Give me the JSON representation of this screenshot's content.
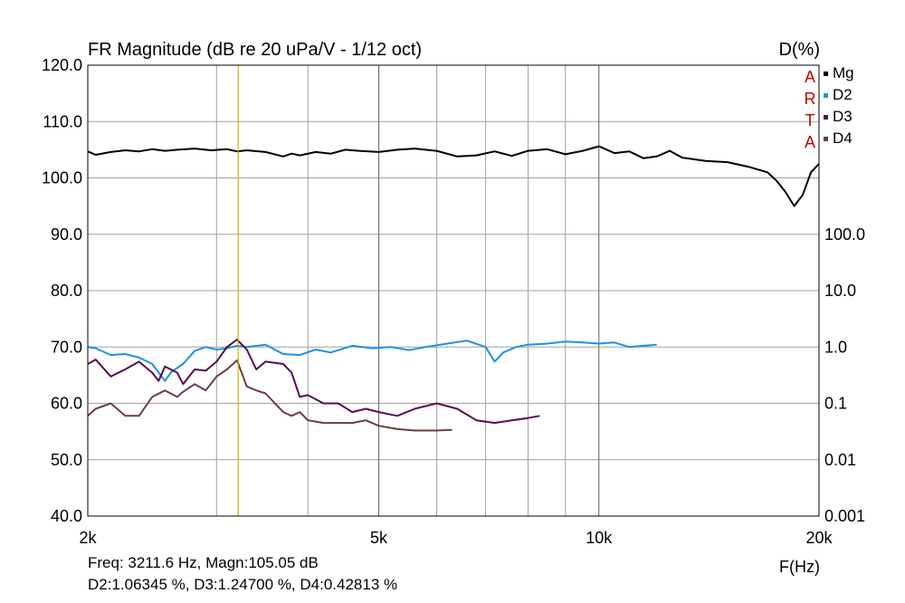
{
  "title": "FR Magnitude (dB re 20 uPa/V - 1/12 oct)",
  "right_axis_title": "D(%)",
  "x_axis_title": "F(Hz)",
  "watermark": [
    "A",
    "R",
    "T",
    "A"
  ],
  "readout": {
    "line1": "Freq: 3211.6 Hz, Magn:105.05 dB",
    "line2": "D2:1.06345 %, D3:1.24700 %, D4:0.42813 %"
  },
  "colors": {
    "mg": "#000000",
    "d2": "#1e90e6",
    "d3": "#5a0a50",
    "d4": "#6e3c3c",
    "grid": "#a0a0a0",
    "cursor": "#c8b400",
    "watermark": "#c00000"
  },
  "chart_data": {
    "type": "line",
    "x_scale": "log",
    "xlim": [
      2000,
      20000
    ],
    "x_ticks": [
      {
        "value": 2000,
        "label": "2k"
      },
      {
        "value": 5000,
        "label": "5k"
      },
      {
        "value": 10000,
        "label": "10k"
      },
      {
        "value": 20000,
        "label": "20k"
      }
    ],
    "x_minor_grid": [
      3000,
      4000,
      6000,
      7000,
      8000,
      9000
    ],
    "y_left": {
      "ylim": [
        40,
        120
      ],
      "ticks": [
        {
          "value": 40,
          "label": "40.0"
        },
        {
          "value": 50,
          "label": "50.0"
        },
        {
          "value": 60,
          "label": "60.0"
        },
        {
          "value": 70,
          "label": "70.0"
        },
        {
          "value": 80,
          "label": "80.0"
        },
        {
          "value": 90,
          "label": "90.0"
        },
        {
          "value": 100,
          "label": "100.0"
        },
        {
          "value": 110,
          "label": "110.0"
        },
        {
          "value": 120,
          "label": "120.0"
        }
      ]
    },
    "y_right": {
      "scale": "log",
      "ticks": [
        {
          "value": 0.001,
          "label": "0.001"
        },
        {
          "value": 0.01,
          "label": "0.01"
        },
        {
          "value": 0.1,
          "label": "0.1"
        },
        {
          "value": 1.0,
          "label": "1.0"
        },
        {
          "value": 10.0,
          "label": "10.0"
        },
        {
          "value": 100.0,
          "label": "100.0"
        }
      ]
    },
    "cursor_x": 3211.6,
    "grid": true,
    "legend_position": "top-right",
    "series": [
      {
        "name": "Mg",
        "axis": "left",
        "color_key": "mg",
        "x": [
          2000,
          2050,
          2150,
          2250,
          2350,
          2450,
          2550,
          2650,
          2800,
          2950,
          3100,
          3200,
          3300,
          3500,
          3700,
          3800,
          3900,
          4100,
          4300,
          4500,
          4700,
          5000,
          5300,
          5600,
          6000,
          6400,
          6800,
          7200,
          7600,
          8000,
          8500,
          9000,
          9500,
          10000,
          10500,
          11000,
          11500,
          12000,
          12500,
          13000,
          14000,
          15000,
          16000,
          17000,
          17500,
          18000,
          18500,
          19000,
          19500,
          20000
        ],
        "y": [
          104.7,
          104.1,
          104.6,
          104.9,
          104.7,
          105.1,
          104.8,
          105.0,
          105.2,
          104.9,
          105.1,
          104.7,
          104.9,
          104.6,
          103.8,
          104.3,
          104.0,
          104.6,
          104.3,
          105.0,
          104.8,
          104.6,
          105.0,
          105.2,
          104.8,
          103.8,
          104.0,
          104.7,
          103.9,
          104.8,
          105.1,
          104.2,
          104.8,
          105.6,
          104.4,
          104.7,
          103.5,
          103.8,
          104.8,
          103.6,
          103.0,
          102.8,
          102.0,
          101.0,
          99.5,
          97.5,
          95.0,
          97.0,
          101.0,
          102.5
        ]
      },
      {
        "name": "D2",
        "axis": "right",
        "color_key": "d2",
        "x": [
          2000,
          2050,
          2150,
          2250,
          2350,
          2450,
          2550,
          2600,
          2700,
          2800,
          2900,
          3000,
          3100,
          3200,
          3300,
          3500,
          3700,
          3900,
          4100,
          4300,
          4600,
          4900,
          5200,
          5500,
          5800,
          6200,
          6600,
          7000,
          7200,
          7400,
          7700,
          8000,
          8500,
          9000,
          9500,
          10000,
          10500,
          11000,
          11500,
          12000
        ],
        "y": [
          1.0,
          0.95,
          0.72,
          0.75,
          0.65,
          0.5,
          0.25,
          0.36,
          0.5,
          0.85,
          1.0,
          0.9,
          0.95,
          1.05,
          1.0,
          1.1,
          0.75,
          0.72,
          0.9,
          0.8,
          1.05,
          0.95,
          1.0,
          0.88,
          1.0,
          1.15,
          1.3,
          1.0,
          0.55,
          0.8,
          1.0,
          1.1,
          1.15,
          1.25,
          1.2,
          1.15,
          1.2,
          1.0,
          1.05,
          1.1
        ]
      },
      {
        "name": "D3",
        "axis": "right",
        "color_key": "d3",
        "x": [
          2000,
          2050,
          2150,
          2250,
          2350,
          2450,
          2500,
          2550,
          2650,
          2700,
          2800,
          2900,
          3000,
          3100,
          3200,
          3300,
          3400,
          3500,
          3700,
          3800,
          3900,
          4000,
          4200,
          4400,
          4600,
          4800,
          5000,
          5300,
          5600,
          6000,
          6400,
          6800,
          7200,
          7600,
          8000,
          8300
        ],
        "y": [
          0.5,
          0.6,
          0.3,
          0.4,
          0.55,
          0.35,
          0.25,
          0.45,
          0.35,
          0.22,
          0.4,
          0.38,
          0.55,
          1.0,
          1.35,
          0.9,
          0.4,
          0.55,
          0.5,
          0.35,
          0.13,
          0.14,
          0.1,
          0.1,
          0.07,
          0.08,
          0.07,
          0.06,
          0.08,
          0.1,
          0.08,
          0.05,
          0.045,
          0.05,
          0.055,
          0.06
        ]
      },
      {
        "name": "D4",
        "axis": "right",
        "color_key": "d4",
        "x": [
          2000,
          2050,
          2150,
          2250,
          2350,
          2450,
          2550,
          2650,
          2700,
          2800,
          2900,
          3000,
          3100,
          3200,
          3300,
          3400,
          3500,
          3700,
          3800,
          3900,
          4000,
          4200,
          4400,
          4600,
          4800,
          5000,
          5300,
          5600,
          6000,
          6300
        ],
        "y": [
          0.06,
          0.08,
          0.1,
          0.06,
          0.06,
          0.13,
          0.17,
          0.13,
          0.16,
          0.22,
          0.17,
          0.3,
          0.4,
          0.58,
          0.2,
          0.17,
          0.15,
          0.07,
          0.06,
          0.07,
          0.05,
          0.045,
          0.045,
          0.045,
          0.05,
          0.04,
          0.035,
          0.033,
          0.033,
          0.034
        ]
      }
    ]
  }
}
